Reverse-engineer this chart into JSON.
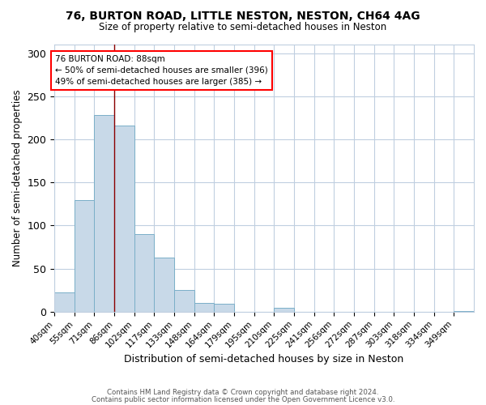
{
  "title": "76, BURTON ROAD, LITTLE NESTON, NESTON, CH64 4AG",
  "subtitle": "Size of property relative to semi-detached houses in Neston",
  "xlabel": "Distribution of semi-detached houses by size in Neston",
  "ylabel": "Number of semi-detached properties",
  "bar_labels": [
    "40sqm",
    "55sqm",
    "71sqm",
    "86sqm",
    "102sqm",
    "117sqm",
    "133sqm",
    "148sqm",
    "164sqm",
    "179sqm",
    "195sqm",
    "210sqm",
    "225sqm",
    "241sqm",
    "256sqm",
    "272sqm",
    "287sqm",
    "303sqm",
    "318sqm",
    "334sqm",
    "349sqm"
  ],
  "bar_values": [
    22,
    130,
    228,
    216,
    90,
    63,
    25,
    10,
    9,
    0,
    0,
    5,
    0,
    0,
    0,
    0,
    0,
    0,
    0,
    0,
    1
  ],
  "bar_color": "#c8d9e8",
  "bar_edge_color": "#7aafc8",
  "ylim": [
    0,
    310
  ],
  "yticks": [
    0,
    50,
    100,
    150,
    200,
    250,
    300
  ],
  "annotation_title": "76 BURTON ROAD: 88sqm",
  "annotation_line1": "← 50% of semi-detached houses are smaller (396)",
  "annotation_line2": "49% of semi-detached houses are larger (385) →",
  "footer_line1": "Contains HM Land Registry data © Crown copyright and database right 2024.",
  "footer_line2": "Contains public sector information licensed under the Open Government Licence v3.0.",
  "background_color": "#ffffff",
  "grid_color": "#c0cfe0",
  "property_line_idx": 3
}
